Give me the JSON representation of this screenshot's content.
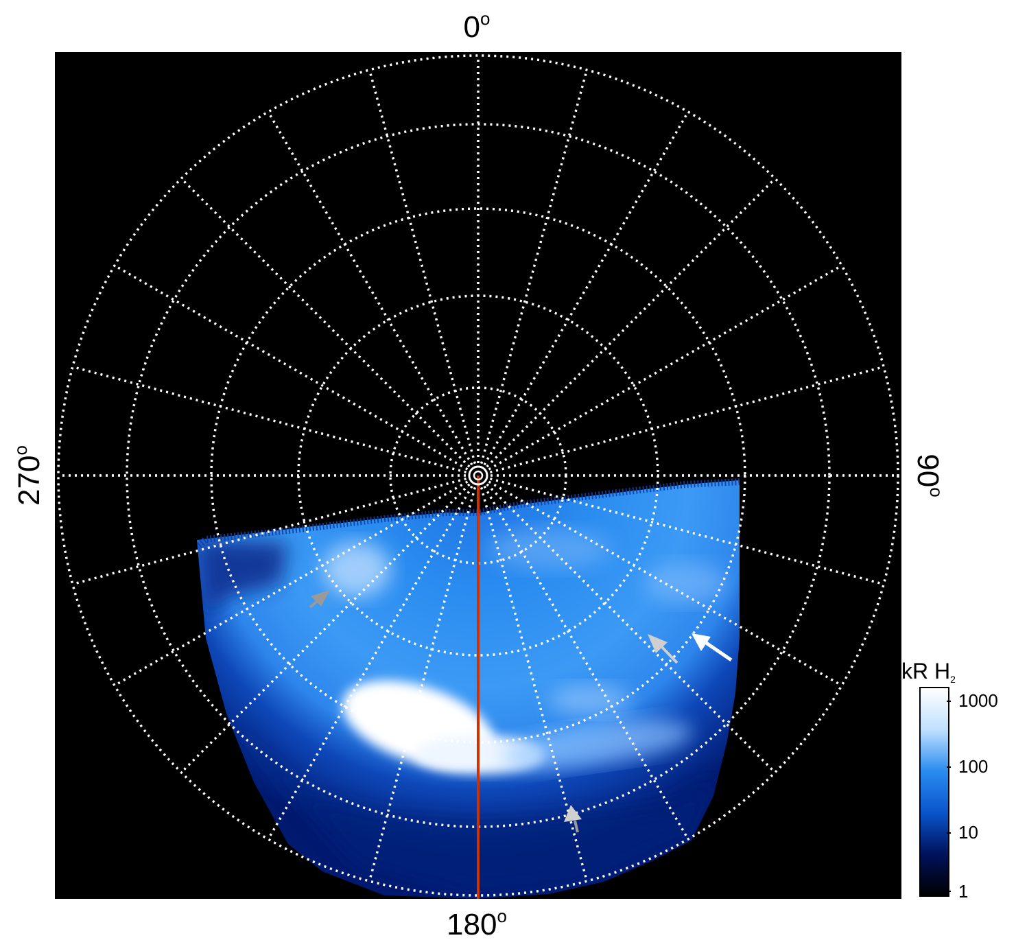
{
  "angle_labels": {
    "top": "0",
    "bottom": "180",
    "left": "270",
    "right": "90",
    "degree_symbol": "o"
  },
  "colorbar": {
    "title": "kR H",
    "title_subscript": "2",
    "ticks": [
      "1000",
      "100",
      "10",
      "1"
    ],
    "scale": "log",
    "colors": [
      "#000000",
      "#00125c",
      "#0a55cc",
      "#2a8cf0",
      "#bfe0ff",
      "#ffffff"
    ]
  },
  "colors": {
    "background": "#000000",
    "grid": "#ffffff",
    "meridian_line": "#cc3300",
    "arrow_gray": "#9a9a9a",
    "arrow_light": "#cfcfcf",
    "arrow_white": "#ffffff"
  },
  "grid": {
    "meridian_spacing_deg": 15,
    "latitude_rings": 6
  }
}
